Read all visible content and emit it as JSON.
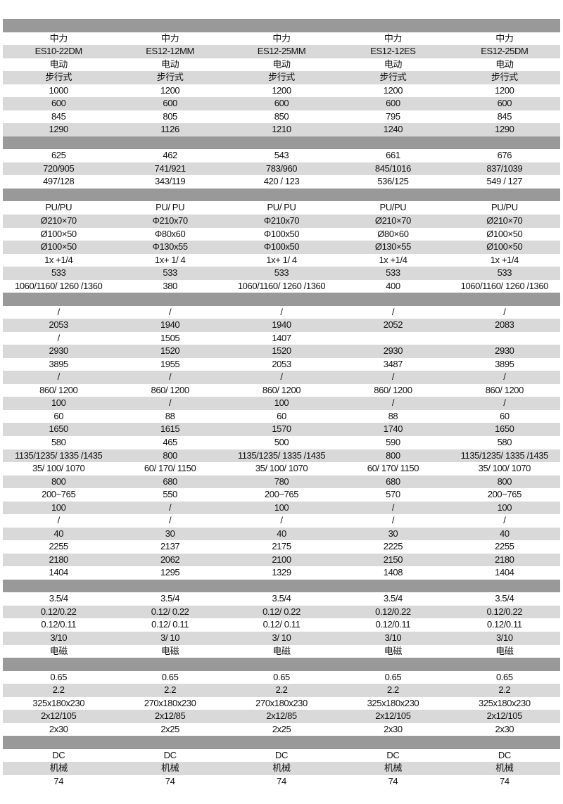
{
  "colors": {
    "section_header": "#999999",
    "row_alt": "#d9d9d9",
    "row": "#ffffff"
  },
  "sections": [
    [
      [
        "中力",
        "中力",
        "中力",
        "中力",
        "中力"
      ],
      [
        "ES10-22DM",
        "ES12-12MM",
        "ES12-25MM",
        "ES12-12ES",
        "ES12-25DM"
      ],
      [
        "电动",
        "电动",
        "电动",
        "电动",
        "电动"
      ],
      [
        "步行式",
        "步行式",
        "步行式",
        "步行式",
        "步行式"
      ],
      [
        "1000",
        "1200",
        "1200",
        "1200",
        "1200"
      ],
      [
        "600",
        "600",
        "600",
        "600",
        "600"
      ],
      [
        "845",
        "805",
        "850",
        "795",
        "845"
      ],
      [
        "1290",
        "1126",
        "1210",
        "1240",
        "1290"
      ]
    ],
    [
      [
        "625",
        "462",
        "543",
        "661",
        "676"
      ],
      [
        "720/905",
        "741/921",
        "783/960",
        "845/1016",
        "837/1039"
      ],
      [
        "497/128",
        "343/119",
        "420 / 123",
        "536/125",
        "549 / 127"
      ]
    ],
    [
      [
        "PU/PU",
        "PU/ PU",
        "PU/ PU",
        "PU/PU",
        "PU/PU"
      ],
      [
        "Ø210×70",
        "Φ210x70",
        "Φ210x70",
        "Ø210×70",
        "Ø210×70"
      ],
      [
        "Ø100×50",
        "Φ80x60",
        "Φ100x50",
        "Ø80×60",
        "Ø100×50"
      ],
      [
        "Ø100×50",
        "Φ130x55",
        "Φ100x50",
        "Ø130×55",
        "Ø100×50"
      ],
      [
        "1x +1/4",
        "1x+ 1/ 4",
        "1x+ 1/ 4",
        "1x +1/4",
        "1x +1/4"
      ],
      [
        "533",
        "533",
        "533",
        "533",
        "533"
      ],
      [
        "1060/1160/ 1260 /1360",
        "380",
        "1060/1160/ 1260 /1360",
        "400",
        "1060/1160/ 1260 /1360"
      ]
    ],
    [
      [
        "/",
        "/",
        "/",
        "/",
        "/"
      ],
      [
        "2053",
        "1940",
        "1940",
        "2052",
        "2083"
      ],
      [
        "/",
        "1505",
        "1407",
        "",
        ""
      ],
      [
        "2930",
        "1520",
        "1520",
        "2930",
        "2930"
      ],
      [
        "3895",
        "1955",
        "2053",
        "3487",
        "3895"
      ],
      [
        "/",
        "/",
        "/",
        "/",
        "/"
      ],
      [
        "860/ 1200",
        "860/ 1200",
        "860/ 1200",
        "860/ 1200",
        "860/ 1200"
      ],
      [
        "100",
        "/",
        "100",
        "/",
        "/"
      ],
      [
        "60",
        "88",
        "60",
        "88",
        "60"
      ],
      [
        "1650",
        "1615",
        "1570",
        "1740",
        "1650"
      ],
      [
        "580",
        "465",
        "500",
        "590",
        "580"
      ],
      [
        "1135/1235/ 1335 /1435",
        "800",
        "1135/1235/ 1335 /1435",
        "800",
        "1135/1235/ 1335 /1435"
      ],
      [
        "35/ 100/ 1070",
        "60/ 170/ 1150",
        "35/ 100/ 1070",
        "60/ 170/ 1150",
        "35/ 100/ 1070"
      ],
      [
        "800",
        "680",
        "780",
        "680",
        "800"
      ],
      [
        "200~765",
        "550",
        "200~765",
        "570",
        "200~765"
      ],
      [
        "100",
        "/",
        "100",
        "/",
        "100"
      ],
      [
        "/",
        "/",
        "/",
        "/",
        "/"
      ],
      [
        "40",
        "30",
        "40",
        "30",
        "40"
      ],
      [
        "2255",
        "2137",
        "2175",
        "2225",
        "2255"
      ],
      [
        "2180",
        "2062",
        "2100",
        "2150",
        "2180"
      ],
      [
        "1404",
        "1295",
        "1329",
        "1408",
        "1404"
      ]
    ],
    [
      [
        "3.5/4",
        "3.5/4",
        "3.5/4",
        "3.5/4",
        "3.5/4"
      ],
      [
        "0.12/0.22",
        "0.12/ 0.22",
        "0.12/ 0.22",
        "0.12/0.22",
        "0.12/0.22"
      ],
      [
        "0.12/0.11",
        "0.12/ 0.11",
        "0.12/ 0.11",
        "0.12/0.11",
        "0.12/0.11"
      ],
      [
        "3/10",
        "3/ 10",
        "3/ 10",
        "3/10",
        "3/10"
      ],
      [
        "电磁",
        "电磁",
        "电磁",
        "电磁",
        "电磁"
      ]
    ],
    [
      [
        "0.65",
        "0.65",
        "0.65",
        "0.65",
        "0.65"
      ],
      [
        "2.2",
        "2.2",
        "2.2",
        "2.2",
        "2.2"
      ],
      [
        "325x180x230",
        "270x180x230",
        "270x180x230",
        "325x180x230",
        "325x180x230"
      ],
      [
        "2x12/105",
        "2x12/85",
        "2x12/85",
        "2x12/105",
        "2x12/105"
      ],
      [
        "2x30",
        "2x25",
        "2x25",
        "2x30",
        "2x30"
      ]
    ],
    [
      [
        "DC",
        "DC",
        "DC",
        "DC",
        "DC"
      ],
      [
        "机械",
        "机械",
        "机械",
        "机械",
        "机械"
      ],
      [
        "74",
        "74",
        "74",
        "74",
        "74"
      ]
    ]
  ]
}
